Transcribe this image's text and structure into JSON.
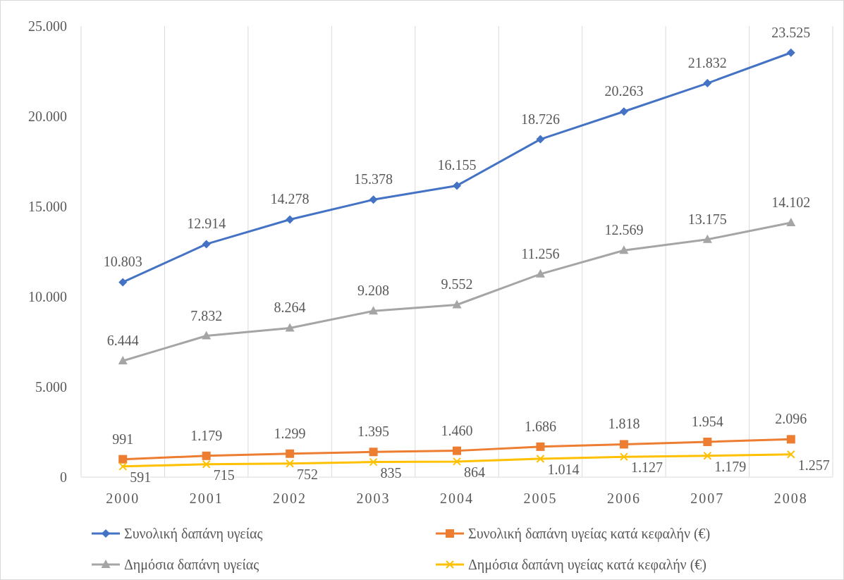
{
  "chart_data": {
    "type": "line",
    "categories": [
      "2000",
      "2001",
      "2002",
      "2003",
      "2004",
      "2005",
      "2006",
      "2007",
      "2008"
    ],
    "ylim": [
      0,
      25000
    ],
    "yticks": [
      {
        "value": 0,
        "label": "0"
      },
      {
        "value": 5000,
        "label": "5.000"
      },
      {
        "value": 10000,
        "label": "10.000"
      },
      {
        "value": 15000,
        "label": "15.000"
      },
      {
        "value": 20000,
        "label": "20.000"
      },
      {
        "value": 25000,
        "label": "25.000"
      }
    ],
    "grid": "x",
    "legend": "bottom",
    "line_style": "solid",
    "series": [
      {
        "name": "Συνολική δαπάνη υγείας",
        "color": "#4472c4",
        "marker": "diamond",
        "values": [
          10803,
          12914,
          14278,
          15378,
          16155,
          18726,
          20263,
          21832,
          23525
        ],
        "value_labels": [
          "10.803",
          "12.914",
          "14.278",
          "15.378",
          "16.155",
          "18.726",
          "20.263",
          "21.832",
          "23.525"
        ]
      },
      {
        "name": "Συνολική δαπάνη υγείας κατά κεφαλήν (€)",
        "color": "#ed7d31",
        "marker": "square",
        "values": [
          991,
          1179,
          1299,
          1395,
          1460,
          1686,
          1818,
          1954,
          2096
        ],
        "value_labels": [
          "991",
          "1.179",
          "1.299",
          "1.395",
          "1.460",
          "1.686",
          "1.818",
          "1.954",
          "2.096"
        ]
      },
      {
        "name": "Δημόσια δαπάνη υγείας",
        "color": "#a5a5a5",
        "marker": "triangle",
        "values": [
          6444,
          7832,
          8264,
          9208,
          9552,
          11256,
          12569,
          13175,
          14102
        ],
        "value_labels": [
          "6.444",
          "7.832",
          "8.264",
          "9.208",
          "9.552",
          "11.256",
          "12.569",
          "13.175",
          "14.102"
        ]
      },
      {
        "name": "Δημόσια δαπάνη υγείας κατά κεφαλήν (€)",
        "color": "#ffc000",
        "marker": "cross",
        "values": [
          591,
          715,
          752,
          835,
          864,
          1014,
          1127,
          1179,
          1257
        ],
        "value_labels": [
          "591",
          "715",
          "752",
          "835",
          "864",
          "1.014",
          "1.127",
          "1.179",
          "1.257"
        ]
      }
    ]
  }
}
